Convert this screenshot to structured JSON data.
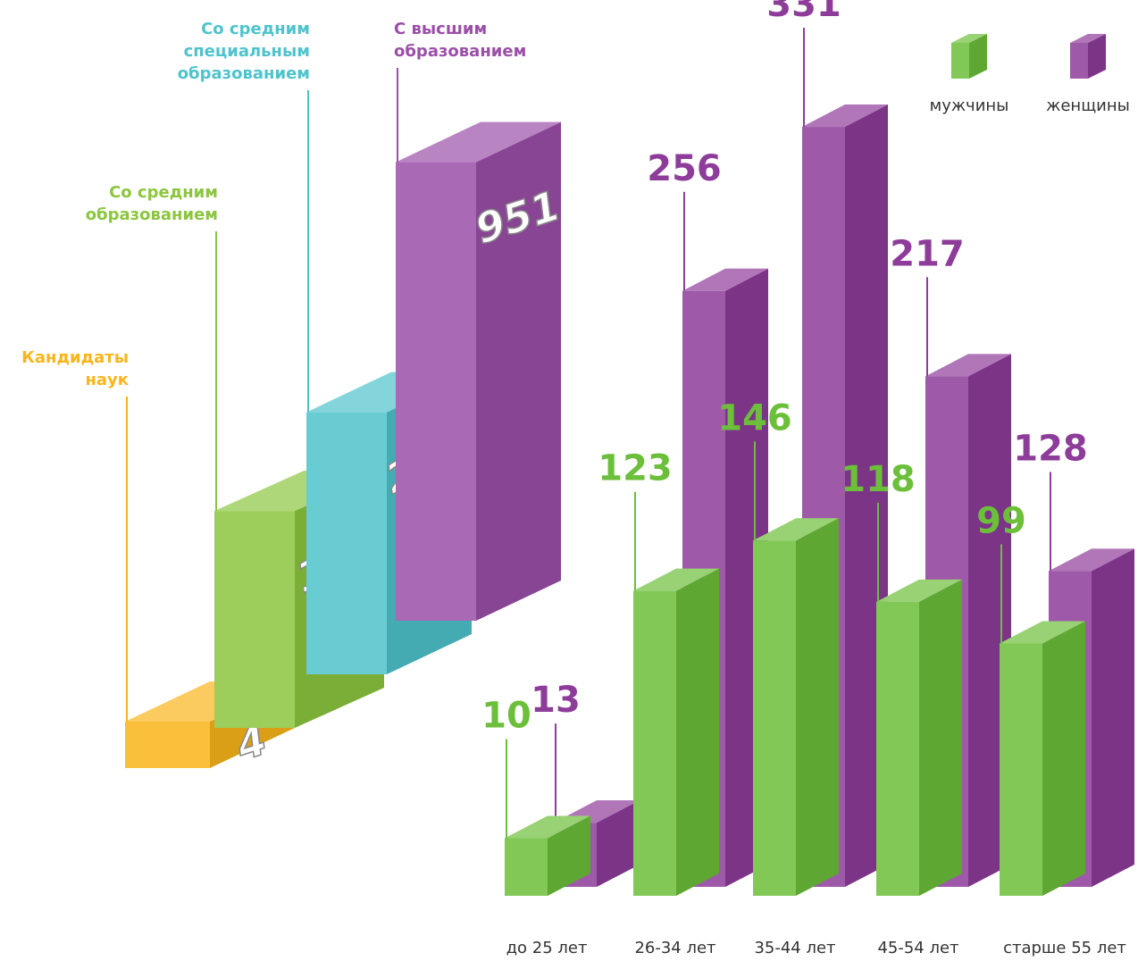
{
  "chart_data": [
    {
      "type": "bar3d",
      "categories": [
        "Кандидаты\nнаук",
        "Со средним\nобразованием",
        "Со средним\nспециальным\nобразованием",
        "С высшим\nобразованием"
      ],
      "values": [
        4,
        194,
        292,
        951
      ],
      "colors": [
        "#f9b51b",
        "#8cc63f",
        "#4fc3cc",
        "#9b4fa8"
      ]
    },
    {
      "type": "grouped-bar3d",
      "categories": [
        "до 25 лет",
        "26-34 лет",
        "35-44 лет",
        "45-54 лет",
        "старше 55 лет"
      ],
      "series": [
        {
          "name": "мужчины",
          "color": "#6cbf3a",
          "values": [
            10,
            123,
            146,
            118,
            99
          ]
        },
        {
          "name": "женщины",
          "color": "#8e3c9a",
          "values": [
            13,
            256,
            331,
            217,
            128
          ]
        }
      ]
    }
  ]
}
